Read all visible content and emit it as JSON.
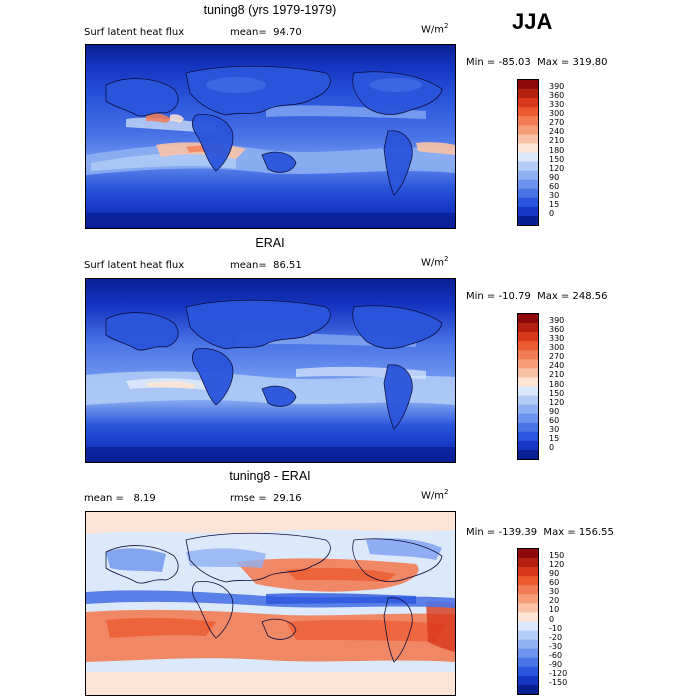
{
  "season": "JJA",
  "panels": [
    {
      "id": "model",
      "title": "tuning8 (yrs 1979-1979)",
      "field": "Surf latent heat flux",
      "stat1": "mean=  94.70",
      "stat2": "",
      "units": "W/m",
      "units_exp": "2",
      "minmax": "Min = -85.03  Max = 319.80",
      "colorbar": {
        "labels": [
          "390",
          "360",
          "330",
          "300",
          "270",
          "240",
          "210",
          "180",
          "150",
          "120",
          "90",
          "60",
          "30",
          "15",
          "0"
        ],
        "colors": [
          "#8e0a0a",
          "#b3200f",
          "#d8381a",
          "#ec5a30",
          "#f27d54",
          "#f59c78",
          "#f9c2a6",
          "#fde4d6",
          "#dce9fa",
          "#b3cdf6",
          "#8fb1f2",
          "#6c93ee",
          "#4a73e6",
          "#2a55dc",
          "#1636c4",
          "#0a1e94"
        ]
      }
    },
    {
      "id": "obs",
      "title": "ERAI",
      "field": "Surf latent heat flux",
      "stat1": "mean=  86.51",
      "stat2": "",
      "units": "W/m",
      "units_exp": "2",
      "minmax": "Min = -10.79  Max = 248.56",
      "colorbar": {
        "labels": [
          "390",
          "360",
          "330",
          "300",
          "270",
          "240",
          "210",
          "180",
          "150",
          "120",
          "90",
          "60",
          "30",
          "15",
          "0"
        ],
        "colors": [
          "#8e0a0a",
          "#b3200f",
          "#d8381a",
          "#ec5a30",
          "#f27d54",
          "#f59c78",
          "#f9c2a6",
          "#fde4d6",
          "#dce9fa",
          "#b3cdf6",
          "#8fb1f2",
          "#6c93ee",
          "#4a73e6",
          "#2a55dc",
          "#1636c4",
          "#0a1e94"
        ]
      }
    },
    {
      "id": "diff",
      "title": "tuning8 - ERAI",
      "field": "",
      "stat1": "mean =   8.19",
      "stat2": "rmse =  29.16",
      "units": "W/m",
      "units_exp": "2",
      "minmax": "Min = -139.39  Max = 156.55",
      "colorbar": {
        "labels": [
          "150",
          "120",
          "90",
          "60",
          "30",
          "20",
          "10",
          "0",
          "-10",
          "-20",
          "-30",
          "-60",
          "-90",
          "-120",
          "-150"
        ],
        "colors": [
          "#8e0a0a",
          "#b3200f",
          "#d8381a",
          "#ec5a30",
          "#f27d54",
          "#f59c78",
          "#f9c2a6",
          "#fde4d6",
          "#dce9fa",
          "#b3cdf6",
          "#8fb1f2",
          "#6c93ee",
          "#4a73e6",
          "#2a55dc",
          "#1636c4",
          "#0a1e94"
        ]
      }
    }
  ]
}
